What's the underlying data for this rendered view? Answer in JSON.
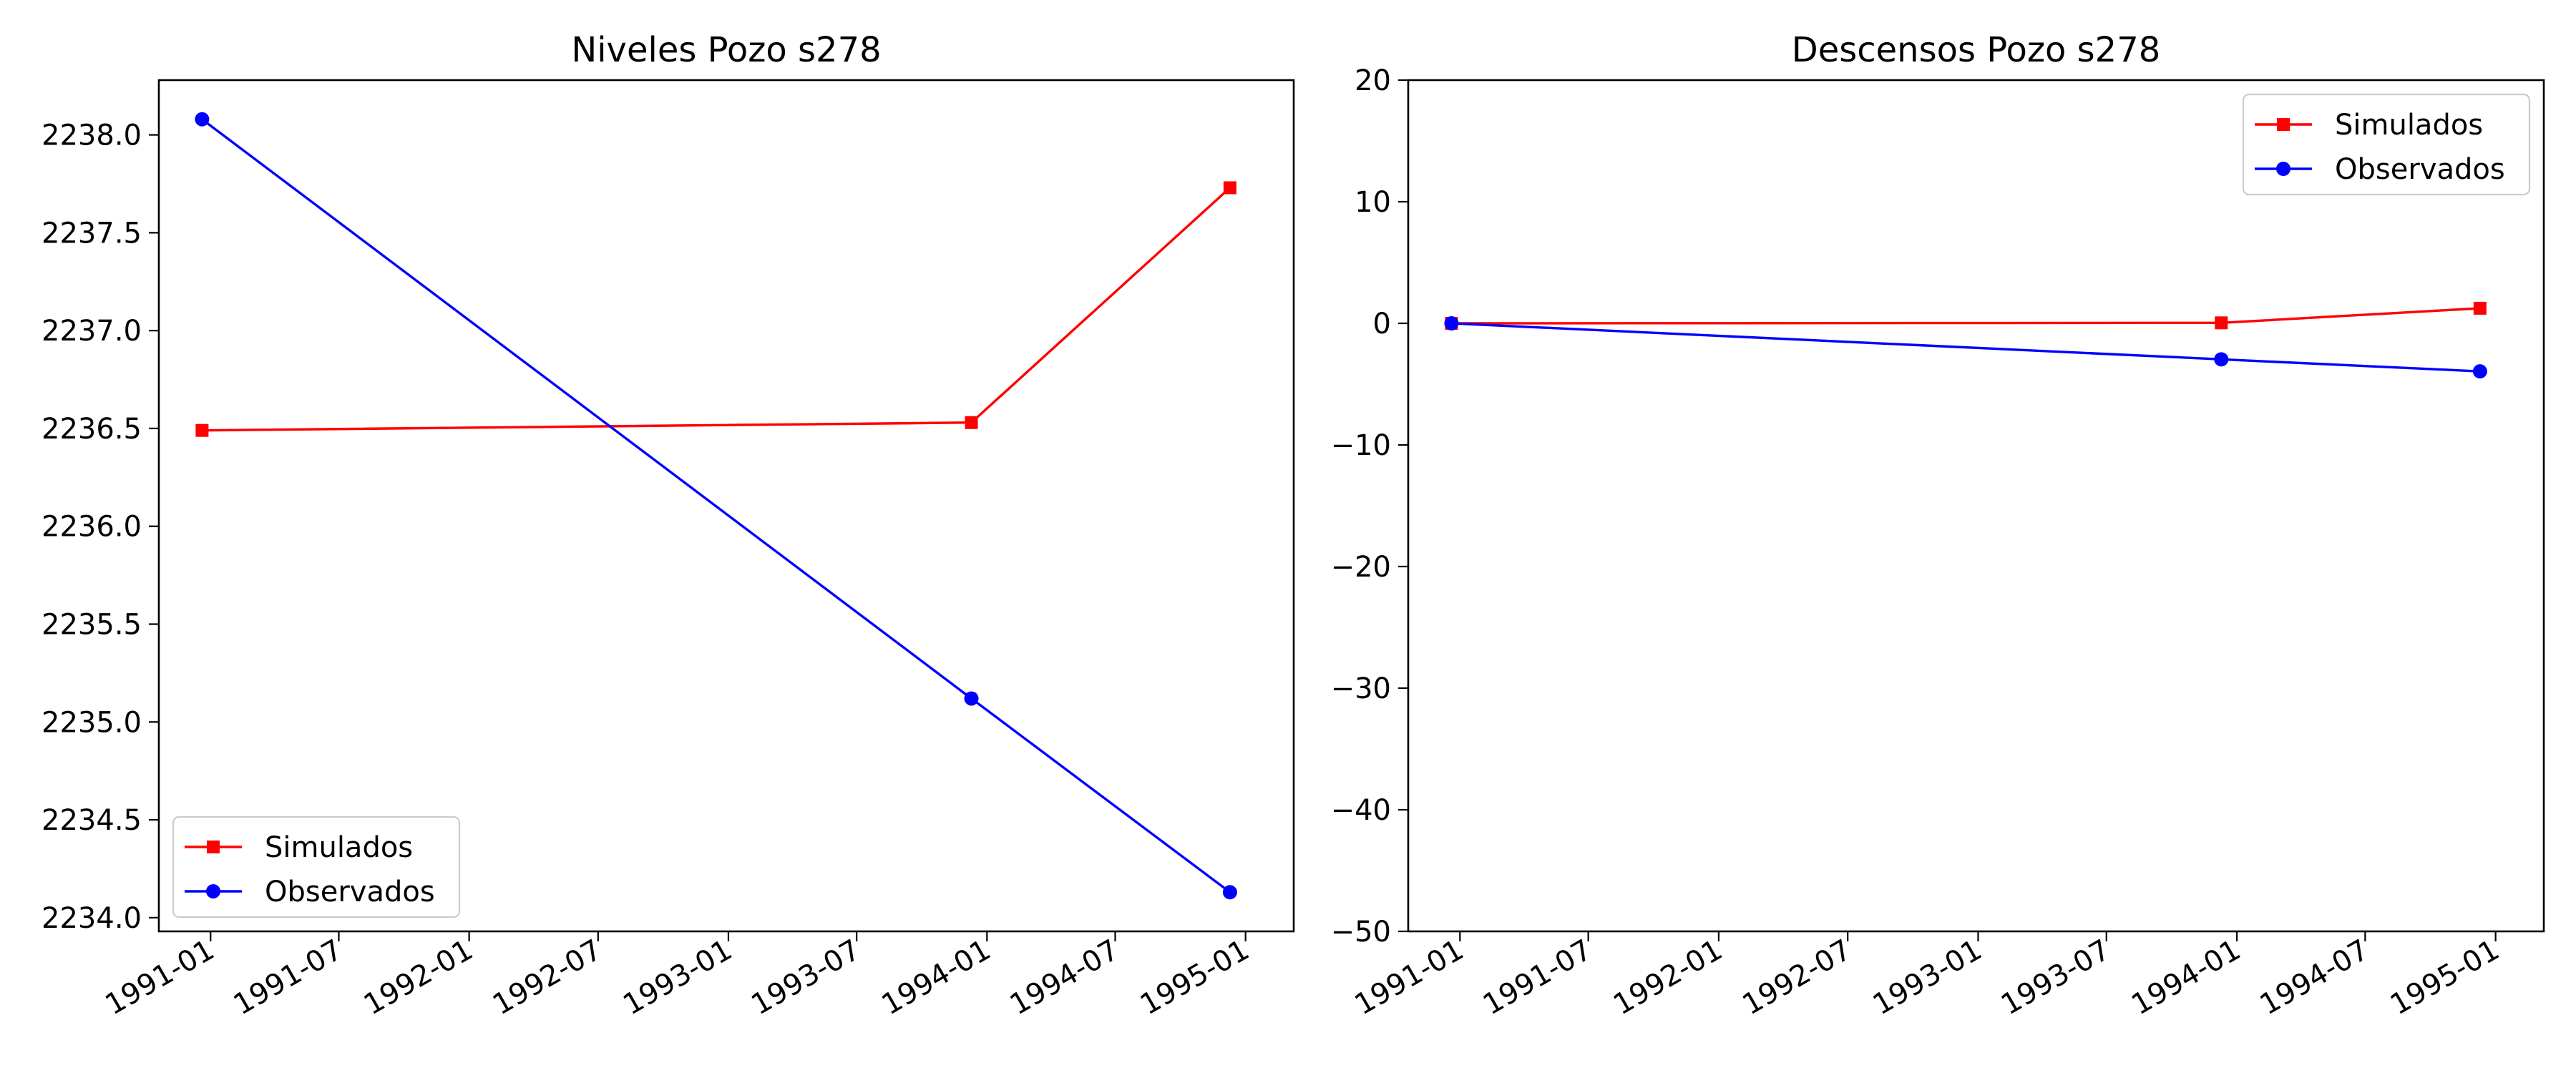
{
  "chart_data": [
    {
      "type": "line",
      "title": "Niveles Pozo s278",
      "xlabel": "",
      "ylabel": "",
      "x_axis": "date",
      "xlim": [
        "1990-10-20",
        "1995-03-10"
      ],
      "ylim": [
        2233.93,
        2238.28
      ],
      "x_ticks": [
        "1991-01",
        "1991-07",
        "1992-01",
        "1992-07",
        "1993-01",
        "1993-07",
        "1994-01",
        "1994-07",
        "1995-01"
      ],
      "y_ticks": [
        2234.0,
        2234.5,
        2235.0,
        2235.5,
        2236.0,
        2236.5,
        2237.0,
        2237.5,
        2238.0
      ],
      "y_tick_labels": [
        "2234.0",
        "2234.5",
        "2235.0",
        "2235.5",
        "2236.0",
        "2236.5",
        "2237.0",
        "2237.5",
        "2238.0"
      ],
      "legend": "lower-left",
      "grid": false,
      "series": [
        {
          "name": "Simulados",
          "color": "#ff0000",
          "marker": "square",
          "x": [
            "1990-12-20",
            "1993-12-10",
            "1994-12-10"
          ],
          "values": [
            2236.49,
            2236.53,
            2237.73
          ]
        },
        {
          "name": "Observados",
          "color": "#0000ff",
          "marker": "circle",
          "x": [
            "1990-12-20",
            "1993-12-10",
            "1994-12-10"
          ],
          "values": [
            2238.08,
            2235.12,
            2234.13
          ]
        }
      ]
    },
    {
      "type": "line",
      "title": "Descensos Pozo s278",
      "xlabel": "",
      "ylabel": "",
      "x_axis": "date",
      "xlim": [
        "1990-10-20",
        "1995-03-10"
      ],
      "ylim": [
        -50,
        20
      ],
      "x_ticks": [
        "1991-01",
        "1991-07",
        "1992-01",
        "1992-07",
        "1993-01",
        "1993-07",
        "1994-01",
        "1994-07",
        "1995-01"
      ],
      "y_ticks": [
        -50,
        -40,
        -30,
        -20,
        -10,
        0,
        10,
        20
      ],
      "y_tick_labels": [
        "−50",
        "−40",
        "−30",
        "−20",
        "−10",
        "0",
        "10",
        "20"
      ],
      "legend": "upper-right",
      "grid": false,
      "series": [
        {
          "name": "Simulados",
          "color": "#ff0000",
          "marker": "square",
          "x": [
            "1990-12-20",
            "1993-12-10",
            "1994-12-10"
          ],
          "values": [
            0.0,
            0.04,
            1.24
          ]
        },
        {
          "name": "Observados",
          "color": "#0000ff",
          "marker": "circle",
          "x": [
            "1990-12-20",
            "1993-12-10",
            "1994-12-10"
          ],
          "values": [
            0.0,
            -2.96,
            -3.95
          ]
        }
      ]
    }
  ]
}
